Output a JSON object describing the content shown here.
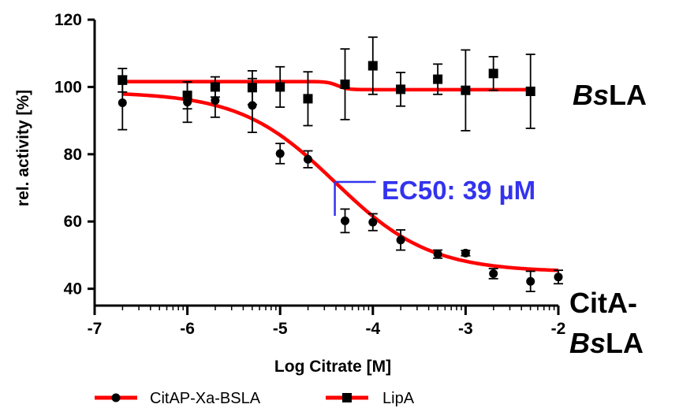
{
  "chart_data": {
    "type": "scatter",
    "xlabel": "Log Citrate [M]",
    "ylabel": "rel. activity [%]",
    "xlim": [
      -7,
      -2
    ],
    "ylim": [
      35,
      120
    ],
    "xticks": [
      -7,
      -6,
      -5,
      -4,
      -3,
      -2
    ],
    "yticks": [
      40,
      60,
      80,
      100,
      120
    ],
    "colors": {
      "fit": "#ff0000",
      "points": "#000000",
      "ec50": "#3333ee"
    },
    "series": [
      {
        "name": "CitAP-Xa-BSLA",
        "marker": "circle",
        "points": [
          {
            "x": -6.7,
            "y": 95.3,
            "err": 8
          },
          {
            "x": -6.0,
            "y": 95.5,
            "err": 6
          },
          {
            "x": -5.7,
            "y": 96.0,
            "err": 5
          },
          {
            "x": -5.3,
            "y": 94.5,
            "err": 8
          },
          {
            "x": -5.0,
            "y": 80.2,
            "err": 3
          },
          {
            "x": -4.7,
            "y": 78.5,
            "err": 2.5
          },
          {
            "x": -4.3,
            "y": 60.2,
            "err": 3.5
          },
          {
            "x": -4.0,
            "y": 59.8,
            "err": 2.5
          },
          {
            "x": -3.7,
            "y": 54.5,
            "err": 3
          },
          {
            "x": -3.3,
            "y": 50.3,
            "err": 1.2
          },
          {
            "x": -3.0,
            "y": 50.6,
            "err": 0.8
          },
          {
            "x": -2.7,
            "y": 44.5,
            "err": 1.5
          },
          {
            "x": -2.3,
            "y": 42.2,
            "err": 3
          },
          {
            "x": -2.0,
            "y": 43.5,
            "err": 2
          }
        ],
        "fit": {
          "top": 98.5,
          "bottom": 45,
          "logEC50": -4.41,
          "hill": 0.85,
          "xrange": [
            -6.7,
            -2.0
          ]
        }
      },
      {
        "name": "LipA",
        "marker": "square",
        "points": [
          {
            "x": -6.7,
            "y": 102.0,
            "err": 3.5
          },
          {
            "x": -6.0,
            "y": 97.5,
            "err": 4
          },
          {
            "x": -5.7,
            "y": 100.0,
            "err": 3
          },
          {
            "x": -5.3,
            "y": 99.8,
            "err": 5
          },
          {
            "x": -5.0,
            "y": 100.0,
            "err": 6
          },
          {
            "x": -4.7,
            "y": 96.5,
            "err": 8
          },
          {
            "x": -4.3,
            "y": 100.8,
            "err": 10.5
          },
          {
            "x": -4.0,
            "y": 106.3,
            "err": 8.5
          },
          {
            "x": -3.7,
            "y": 99.3,
            "err": 5
          },
          {
            "x": -3.3,
            "y": 102.3,
            "err": 4.5
          },
          {
            "x": -3.0,
            "y": 99.0,
            "err": 12
          },
          {
            "x": -2.7,
            "y": 104.0,
            "err": 5
          },
          {
            "x": -2.3,
            "y": 98.7,
            "err": 11
          }
        ],
        "fit": {
          "top": 101.6,
          "bottom": 99.2,
          "logEC50": -4.38,
          "hill": 8,
          "xrange": [
            -6.7,
            -2.3
          ]
        }
      }
    ],
    "annotations": {
      "ec50_text": "EC50: 39 µM",
      "ec50_logx": -4.41,
      "label_bsla_prefix": "Bs",
      "label_bsla_suffix": "LA",
      "label_citabsla_line1": "CitA-",
      "label_citabsla_line2_prefix": "Bs",
      "label_citabsla_line2_suffix": "LA"
    },
    "legend": {
      "position": "bottom"
    }
  }
}
